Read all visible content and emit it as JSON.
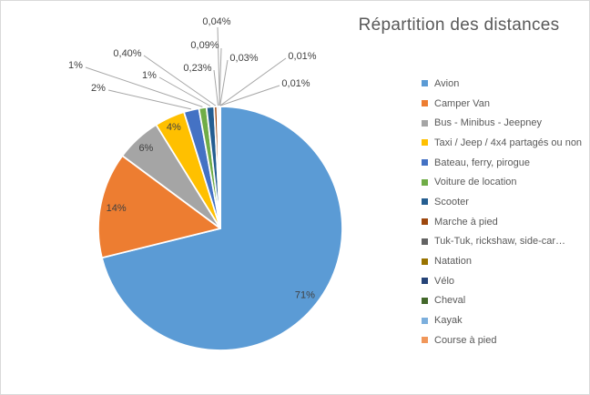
{
  "chart_title": {
    "text": "Répartition des distances",
    "color": "#595959"
  },
  "chart_data": {
    "type": "pie",
    "title": "Répartition des distances",
    "legend_position": "right",
    "start_angle_deg": 0,
    "direction": "clockwise",
    "value_unit": "percent",
    "slices": [
      {
        "name": "Avion",
        "value_pct": 71,
        "label": "71%",
        "color": "#5B9BD5",
        "label_placement": "inside"
      },
      {
        "name": "Camper Van",
        "value_pct": 14,
        "label": "14%",
        "color": "#ED7D31",
        "label_placement": "inside"
      },
      {
        "name": "Bus - Minibus - Jeepney",
        "value_pct": 6,
        "label": "6%",
        "color": "#A5A5A5",
        "label_placement": "inside"
      },
      {
        "name": "Taxi / Jeep / 4x4 partagés ou non",
        "value_pct": 4,
        "label": "4%",
        "color": "#FFC000",
        "label_placement": "inside"
      },
      {
        "name": "Bateau, ferry, pirogue",
        "value_pct": 2,
        "label": "2%",
        "color": "#4472C4",
        "label_placement": "outside"
      },
      {
        "name": "Voiture de location",
        "value_pct": 1,
        "label": "1%",
        "color": "#70AD47",
        "label_placement": "outside"
      },
      {
        "name": "Scooter",
        "value_pct": 1,
        "label": "1%",
        "color": "#255E91",
        "label_placement": "outside"
      },
      {
        "name": "Marche à pied",
        "value_pct": 0.4,
        "label": "0,40%",
        "color": "#9E480E",
        "label_placement": "outside"
      },
      {
        "name": "Tuk-Tuk, rickshaw, side-car…",
        "value_pct": 0.23,
        "label": "0,23%",
        "color": "#636363",
        "label_placement": "outside"
      },
      {
        "name": "Natation",
        "value_pct": 0.09,
        "label": "0,09%",
        "color": "#997300",
        "label_placement": "outside"
      },
      {
        "name": "Vélo",
        "value_pct": 0.04,
        "label": "0,04%",
        "color": "#264478",
        "label_placement": "outside"
      },
      {
        "name": "Cheval",
        "value_pct": 0.03,
        "label": "0,03%",
        "color": "#43682B",
        "label_placement": "outside"
      },
      {
        "name": "Kayak",
        "value_pct": 0.01,
        "label": "0,01%",
        "color": "#7CAFDD",
        "label_placement": "outside"
      },
      {
        "name": "Course à pied",
        "value_pct": 0.01,
        "label": "0,01%",
        "color": "#F1975A",
        "label_placement": "outside"
      }
    ]
  },
  "styles": {
    "background": "#FFFFFF",
    "frame_border_color": "#D9D9D9",
    "label_text_color": "#404040",
    "legend_text_color": "#595959",
    "leader_line_color": "#A6A6A6",
    "slice_border_color": "#FFFFFF"
  }
}
